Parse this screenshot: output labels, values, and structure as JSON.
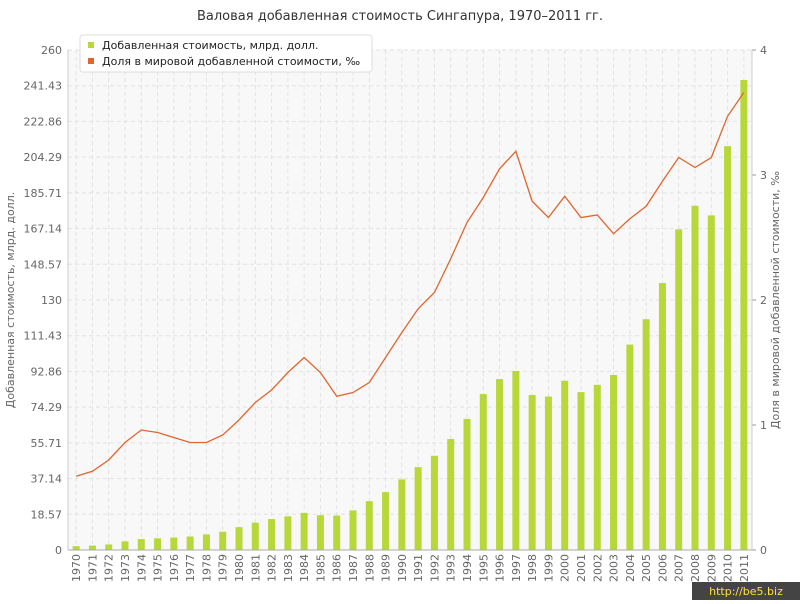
{
  "chart_data": {
    "type": "bar-line",
    "title": "Валовая добавленная стоимость Сингапура, 1970–2011 гг.",
    "y_label": "Добавленная стоимость, млрд. долл.",
    "y2_label": "Доля в мировой добавленной стоимости, ‰",
    "categories": [
      "1970",
      "1971",
      "1972",
      "1973",
      "1974",
      "1975",
      "1976",
      "1977",
      "1978",
      "1979",
      "1980",
      "1981",
      "1982",
      "1983",
      "1984",
      "1985",
      "1986",
      "1987",
      "1988",
      "1989",
      "1990",
      "1991",
      "1992",
      "1993",
      "1994",
      "1995",
      "1996",
      "1997",
      "1998",
      "1999",
      "2000",
      "2001",
      "2002",
      "2003",
      "2004",
      "2005",
      "2006",
      "2007",
      "2008",
      "2009",
      "2010",
      "2011"
    ],
    "series": [
      {
        "name": "Добавленная стоимость, млрд. долл.",
        "type": "bar",
        "color": "#b8d83a",
        "values": [
          2.0,
          2.3,
          2.9,
          4.5,
          5.7,
          6.1,
          6.5,
          7.0,
          8.1,
          9.5,
          11.9,
          14.2,
          16.1,
          17.5,
          19.3,
          18.1,
          17.9,
          20.6,
          25.4,
          30.1,
          36.7,
          43.1,
          49.0,
          57.7,
          68.2,
          81.1,
          88.9,
          93.1,
          80.6,
          79.8,
          88.0,
          82.1,
          85.9,
          91.0,
          106.8,
          120.0,
          138.8,
          166.7,
          179.0,
          174.0,
          210.0,
          244.4
        ]
      },
      {
        "name": "Доля в мировой добавленной стоимости, ‰",
        "type": "line",
        "axis": "y2",
        "color": "#e0652e",
        "values": [
          0.59,
          0.63,
          0.72,
          0.86,
          0.96,
          0.94,
          0.9,
          0.86,
          0.86,
          0.92,
          1.04,
          1.18,
          1.28,
          1.42,
          1.54,
          1.42,
          1.23,
          1.26,
          1.34,
          1.54,
          1.74,
          1.93,
          2.06,
          2.33,
          2.62,
          2.82,
          3.05,
          3.19,
          2.79,
          2.66,
          2.83,
          2.66,
          2.68,
          2.53,
          2.65,
          2.75,
          2.95,
          3.14,
          3.06,
          3.14,
          3.47,
          3.66
        ]
      }
    ],
    "ylim": [
      0,
      260
    ],
    "yticks": [
      0,
      18.57,
      37.14,
      55.71,
      74.29,
      92.86,
      111.43,
      130,
      148.57,
      167.14,
      185.71,
      204.29,
      222.86,
      241.43,
      260
    ],
    "y2lim": [
      0,
      4
    ],
    "y2ticks": [
      0,
      1,
      2,
      3,
      4
    ],
    "grid": true,
    "legend": "top-left",
    "watermark": "http://be5.biz"
  }
}
